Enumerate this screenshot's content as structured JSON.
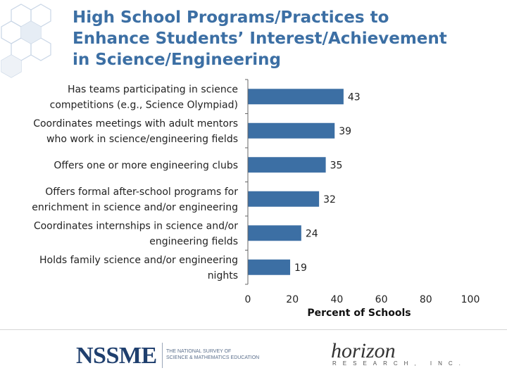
{
  "title": {
    "line1": "High School Programs/Practices to",
    "line2": "Enhance Students’ Interest/Achievement",
    "line3": "in Science/Engineering"
  },
  "chart_data": {
    "type": "bar",
    "orientation": "horizontal",
    "categories": [
      [
        "Has teams participating in science",
        "competitions (e.g., Science Olympiad)"
      ],
      [
        "Coordinates meetings with adult mentors",
        "who work in science/engineering fields"
      ],
      [
        "Offers one or more engineering clubs"
      ],
      [
        "Offers formal after-school programs for",
        "enrichment in science and/or engineering"
      ],
      [
        "Coordinates internships in science and/or",
        "engineering fields"
      ],
      [
        "Holds family science and/or engineering",
        "nights"
      ]
    ],
    "values": [
      43,
      39,
      35,
      32,
      24,
      19
    ],
    "xlabel": "Percent of Schools",
    "ylabel": "",
    "xlim": [
      0,
      100
    ],
    "ticks": [
      0,
      20,
      40,
      60,
      80,
      100
    ],
    "bar_color": "#3c6fa4",
    "grid": false,
    "legend": "none"
  },
  "footer": {
    "nssme_logo": "NSSME",
    "nssme_sub_line1": "THE NATIONAL SURVEY OF",
    "nssme_sub_line2": "SCIENCE & MATHEMATICS EDUCATION",
    "horizon_logo": "horizon",
    "horizon_sub": "RESEARCH, INC."
  },
  "colors": {
    "title": "#3c6fa4",
    "bar": "#3c6fa4",
    "logo_navy": "#1f3f6e"
  }
}
